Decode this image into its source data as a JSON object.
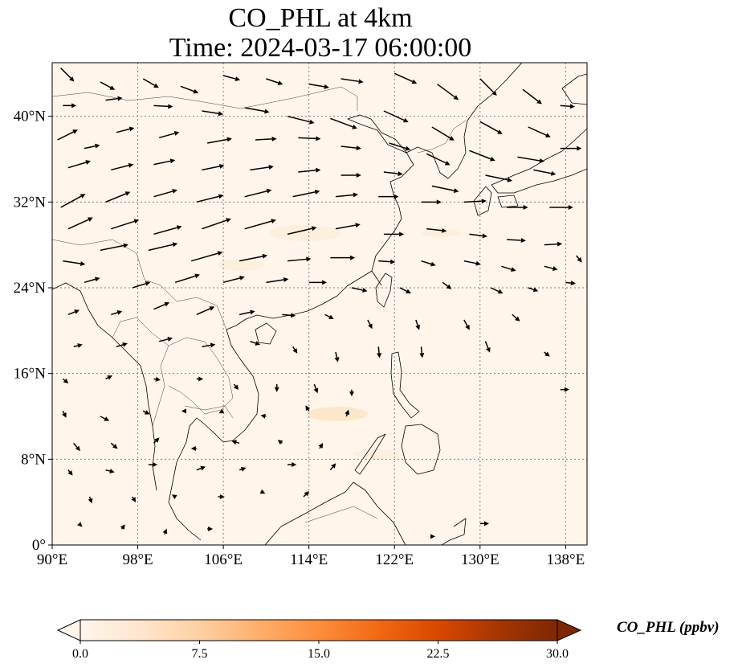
{
  "title": {
    "line1": "CO_PHL at 4km",
    "line2": "Time: 2024-03-17 06:00:00"
  },
  "map": {
    "lon_range": [
      90,
      140
    ],
    "lat_range": [
      0,
      45
    ],
    "lon_ticks": [
      {
        "value": 90,
        "label": "90°E"
      },
      {
        "value": 98,
        "label": "98°E"
      },
      {
        "value": 106,
        "label": "106°E"
      },
      {
        "value": 114,
        "label": "114°E"
      },
      {
        "value": 122,
        "label": "122°E"
      },
      {
        "value": 130,
        "label": "130°E"
      },
      {
        "value": 138,
        "label": "138°E"
      }
    ],
    "lat_ticks": [
      {
        "value": 0,
        "label": "0°"
      },
      {
        "value": 8,
        "label": "8°N"
      },
      {
        "value": 16,
        "label": "16°N"
      },
      {
        "value": 24,
        "label": "24°N"
      },
      {
        "value": 32,
        "label": "32°N"
      },
      {
        "value": 40,
        "label": "40°N"
      }
    ],
    "gridlines": true,
    "background_color": "#fff5ea",
    "coast_color": "#000000"
  },
  "colorbar": {
    "label": "CO_PHL (ppbv)",
    "min": 0,
    "max": 30,
    "ticks": [
      "0.0",
      "7.5",
      "15.0",
      "22.5",
      "30.0"
    ],
    "colors": [
      "#fff5eb",
      "#fee6ce",
      "#fdd0a2",
      "#fdae6b",
      "#fd8d3c",
      "#f16913",
      "#d94801",
      "#a63603",
      "#7f2704"
    ],
    "extend": "both"
  },
  "wind_vectors": [
    {
      "lon": 90.8,
      "lat": 44.5,
      "u": 1.2,
      "v": -1.2
    },
    {
      "lon": 94.5,
      "lat": 43.2,
      "u": 1.3,
      "v": -0.7
    },
    {
      "lon": 98.5,
      "lat": 43.5,
      "u": 1.4,
      "v": -0.8
    },
    {
      "lon": 102.0,
      "lat": 42.8,
      "u": 1.6,
      "v": -0.6
    },
    {
      "lon": 106.0,
      "lat": 43.8,
      "u": 1.5,
      "v": -0.4
    },
    {
      "lon": 110.0,
      "lat": 43.5,
      "u": 1.5,
      "v": -0.5
    },
    {
      "lon": 114.0,
      "lat": 43.0,
      "u": 1.8,
      "v": -0.3
    },
    {
      "lon": 117.0,
      "lat": 43.5,
      "u": 2.0,
      "v": -0.3
    },
    {
      "lon": 122.0,
      "lat": 44.0,
      "u": 2.0,
      "v": -0.9
    },
    {
      "lon": 126.0,
      "lat": 43.0,
      "u": 1.9,
      "v": -1.4
    },
    {
      "lon": 130.0,
      "lat": 43.5,
      "u": 1.5,
      "v": -1.5
    },
    {
      "lon": 134.0,
      "lat": 42.5,
      "u": 1.7,
      "v": -1.3
    },
    {
      "lon": 137.5,
      "lat": 41.0,
      "u": 1.3,
      "v": -0.1
    },
    {
      "lon": 91.0,
      "lat": 41.0,
      "u": 1.2,
      "v": 0.0
    },
    {
      "lon": 95.0,
      "lat": 41.5,
      "u": 1.5,
      "v": 0.2
    },
    {
      "lon": 99.5,
      "lat": 41.0,
      "u": 1.7,
      "v": -0.1
    },
    {
      "lon": 104.0,
      "lat": 40.5,
      "u": 1.9,
      "v": -0.3
    },
    {
      "lon": 108.0,
      "lat": 40.8,
      "u": 2.2,
      "v": -0.4
    },
    {
      "lon": 112.0,
      "lat": 40.0,
      "u": 2.4,
      "v": -0.6
    },
    {
      "lon": 116.0,
      "lat": 39.8,
      "u": 2.4,
      "v": -0.9
    },
    {
      "lon": 121.0,
      "lat": 40.5,
      "u": 2.2,
      "v": -1.0
    },
    {
      "lon": 125.5,
      "lat": 39.0,
      "u": 2.0,
      "v": -1.2
    },
    {
      "lon": 130.0,
      "lat": 39.5,
      "u": 2.0,
      "v": -1.1
    },
    {
      "lon": 134.5,
      "lat": 39.0,
      "u": 2.0,
      "v": -0.9
    },
    {
      "lon": 90.5,
      "lat": 37.8,
      "u": 1.8,
      "v": 0.9
    },
    {
      "lon": 93.0,
      "lat": 37.0,
      "u": 1.4,
      "v": 0.3
    },
    {
      "lon": 96.0,
      "lat": 38.5,
      "u": 1.6,
      "v": 0.4
    },
    {
      "lon": 100.0,
      "lat": 38.0,
      "u": 1.8,
      "v": 0.5
    },
    {
      "lon": 104.5,
      "lat": 37.5,
      "u": 2.2,
      "v": 0.4
    },
    {
      "lon": 109.0,
      "lat": 37.8,
      "u": 1.9,
      "v": 0.1
    },
    {
      "lon": 113.0,
      "lat": 38.0,
      "u": 2.0,
      "v": -0.1
    },
    {
      "lon": 117.0,
      "lat": 37.2,
      "u": 1.8,
      "v": -0.2
    },
    {
      "lon": 121.5,
      "lat": 37.5,
      "u": 1.9,
      "v": -0.6
    },
    {
      "lon": 125.0,
      "lat": 36.5,
      "u": 2.1,
      "v": -1.0
    },
    {
      "lon": 129.0,
      "lat": 36.8,
      "u": 2.3,
      "v": -0.9
    },
    {
      "lon": 133.5,
      "lat": 36.2,
      "u": 2.4,
      "v": -0.4
    },
    {
      "lon": 137.5,
      "lat": 37.0,
      "u": 1.9,
      "v": 0.0
    },
    {
      "lon": 91.5,
      "lat": 35.2,
      "u": 2.0,
      "v": 0.6
    },
    {
      "lon": 95.5,
      "lat": 35.0,
      "u": 2.0,
      "v": 0.5
    },
    {
      "lon": 99.5,
      "lat": 35.5,
      "u": 1.9,
      "v": 0.4
    },
    {
      "lon": 104.0,
      "lat": 35.0,
      "u": 2.0,
      "v": 0.4
    },
    {
      "lon": 108.5,
      "lat": 35.0,
      "u": 2.1,
      "v": 0.3
    },
    {
      "lon": 113.0,
      "lat": 34.8,
      "u": 2.0,
      "v": 0.2
    },
    {
      "lon": 117.0,
      "lat": 34.5,
      "u": 1.8,
      "v": 0.0
    },
    {
      "lon": 121.0,
      "lat": 34.8,
      "u": 1.7,
      "v": -0.2
    },
    {
      "lon": 125.5,
      "lat": 33.5,
      "u": 2.4,
      "v": -0.5
    },
    {
      "lon": 130.5,
      "lat": 34.5,
      "u": 2.4,
      "v": -0.5
    },
    {
      "lon": 135.0,
      "lat": 35.0,
      "u": 2.0,
      "v": -0.4
    },
    {
      "lon": 90.8,
      "lat": 31.5,
      "u": 2.2,
      "v": 1.2
    },
    {
      "lon": 95.0,
      "lat": 32.0,
      "u": 2.2,
      "v": 0.9
    },
    {
      "lon": 99.5,
      "lat": 32.5,
      "u": 2.1,
      "v": 0.6
    },
    {
      "lon": 103.5,
      "lat": 32.0,
      "u": 2.4,
      "v": 0.6
    },
    {
      "lon": 108.0,
      "lat": 32.5,
      "u": 2.4,
      "v": 0.6
    },
    {
      "lon": 112.5,
      "lat": 32.5,
      "u": 2.4,
      "v": 0.5
    },
    {
      "lon": 116.5,
      "lat": 32.5,
      "u": 2.0,
      "v": 0.2
    },
    {
      "lon": 120.5,
      "lat": 32.5,
      "u": 1.8,
      "v": 0.0
    },
    {
      "lon": 124.5,
      "lat": 32.0,
      "u": 1.8,
      "v": 0.0
    },
    {
      "lon": 128.5,
      "lat": 32.0,
      "u": 2.0,
      "v": 0.1
    },
    {
      "lon": 132.5,
      "lat": 31.5,
      "u": 1.9,
      "v": 0.0
    },
    {
      "lon": 136.5,
      "lat": 31.5,
      "u": 2.1,
      "v": 0.0
    },
    {
      "lon": 91.5,
      "lat": 29.5,
      "u": 2.2,
      "v": 1.0
    },
    {
      "lon": 95.5,
      "lat": 29.5,
      "u": 2.5,
      "v": 0.8
    },
    {
      "lon": 99.5,
      "lat": 29.0,
      "u": 2.5,
      "v": 0.7
    },
    {
      "lon": 104.0,
      "lat": 29.5,
      "u": 2.6,
      "v": 0.9
    },
    {
      "lon": 108.0,
      "lat": 29.5,
      "u": 2.8,
      "v": 0.8
    },
    {
      "lon": 112.0,
      "lat": 29.0,
      "u": 2.6,
      "v": 0.6
    },
    {
      "lon": 116.5,
      "lat": 29.5,
      "u": 2.2,
      "v": 0.4
    },
    {
      "lon": 121.0,
      "lat": 29.0,
      "u": 1.8,
      "v": 0.0
    },
    {
      "lon": 125.0,
      "lat": 29.5,
      "u": 1.8,
      "v": -0.2
    },
    {
      "lon": 129.0,
      "lat": 29.0,
      "u": 1.6,
      "v": -0.2
    },
    {
      "lon": 132.5,
      "lat": 28.5,
      "u": 1.7,
      "v": -0.1
    },
    {
      "lon": 136.0,
      "lat": 28.0,
      "u": 1.6,
      "v": 0.1
    },
    {
      "lon": 91.0,
      "lat": 26.5,
      "u": 2.0,
      "v": -0.3
    },
    {
      "lon": 94.5,
      "lat": 27.5,
      "u": 2.5,
      "v": 0.5
    },
    {
      "lon": 99.0,
      "lat": 27.5,
      "u": 2.6,
      "v": 0.6
    },
    {
      "lon": 103.0,
      "lat": 26.5,
      "u": 2.8,
      "v": 0.8
    },
    {
      "lon": 107.5,
      "lat": 26.5,
      "u": 2.5,
      "v": 0.5
    },
    {
      "lon": 112.0,
      "lat": 26.5,
      "u": 2.1,
      "v": 0.2
    },
    {
      "lon": 116.0,
      "lat": 26.8,
      "u": 2.2,
      "v": 0.0
    },
    {
      "lon": 120.5,
      "lat": 26.5,
      "u": 1.5,
      "v": -0.1
    },
    {
      "lon": 124.5,
      "lat": 26.5,
      "u": 1.3,
      "v": -0.4
    },
    {
      "lon": 128.5,
      "lat": 26.5,
      "u": 1.5,
      "v": -0.3
    },
    {
      "lon": 132.0,
      "lat": 26.0,
      "u": 1.3,
      "v": -0.4
    },
    {
      "lon": 136.0,
      "lat": 26.0,
      "u": 1.2,
      "v": -0.3
    },
    {
      "lon": 139.0,
      "lat": 27.0,
      "u": 0.5,
      "v": -0.6
    },
    {
      "lon": 93.0,
      "lat": 24.5,
      "u": 1.4,
      "v": 0.4
    },
    {
      "lon": 97.5,
      "lat": 24.0,
      "u": 1.6,
      "v": 0.5
    },
    {
      "lon": 101.5,
      "lat": 24.5,
      "u": 2.2,
      "v": 0.7
    },
    {
      "lon": 106.0,
      "lat": 24.5,
      "u": 1.9,
      "v": 0.5
    },
    {
      "lon": 110.0,
      "lat": 24.5,
      "u": 2.0,
      "v": 0.3
    },
    {
      "lon": 114.0,
      "lat": 24.5,
      "u": 1.6,
      "v": 0.0
    },
    {
      "lon": 118.0,
      "lat": 24.0,
      "u": 1.4,
      "v": -0.3
    },
    {
      "lon": 122.5,
      "lat": 24.0,
      "u": 1.0,
      "v": -0.5
    },
    {
      "lon": 126.5,
      "lat": 24.5,
      "u": 0.8,
      "v": -0.6
    },
    {
      "lon": 131.0,
      "lat": 24.0,
      "u": 1.1,
      "v": -0.5
    },
    {
      "lon": 134.5,
      "lat": 24.0,
      "u": 0.9,
      "v": -0.3
    },
    {
      "lon": 138.0,
      "lat": 24.5,
      "u": 0.9,
      "v": -0.1
    },
    {
      "lon": 91.5,
      "lat": 21.5,
      "u": 1.0,
      "v": 0.4
    },
    {
      "lon": 95.5,
      "lat": 21.5,
      "u": 1.0,
      "v": 0.3
    },
    {
      "lon": 99.5,
      "lat": 22.0,
      "u": 1.4,
      "v": 0.6
    },
    {
      "lon": 103.5,
      "lat": 21.5,
      "u": 1.6,
      "v": 0.7
    },
    {
      "lon": 107.5,
      "lat": 21.5,
      "u": 1.4,
      "v": 0.3
    },
    {
      "lon": 111.5,
      "lat": 21.5,
      "u": 1.2,
      "v": -0.1
    },
    {
      "lon": 115.5,
      "lat": 21.5,
      "u": 0.8,
      "v": -0.4
    },
    {
      "lon": 119.5,
      "lat": 21.0,
      "u": 0.4,
      "v": -0.8
    },
    {
      "lon": 124.0,
      "lat": 21.0,
      "u": 0.3,
      "v": -0.9
    },
    {
      "lon": 128.5,
      "lat": 21.0,
      "u": 0.5,
      "v": -0.9
    },
    {
      "lon": 133.0,
      "lat": 21.5,
      "u": 0.7,
      "v": -0.6
    },
    {
      "lon": 92.0,
      "lat": 18.5,
      "u": 0.8,
      "v": 0.2
    },
    {
      "lon": 96.0,
      "lat": 18.5,
      "u": 1.0,
      "v": 0.3
    },
    {
      "lon": 100.0,
      "lat": 19.0,
      "u": 1.2,
      "v": 0.3
    },
    {
      "lon": 104.0,
      "lat": 18.5,
      "u": 1.2,
      "v": 0.2
    },
    {
      "lon": 108.5,
      "lat": 19.0,
      "u": 0.9,
      "v": -0.3
    },
    {
      "lon": 112.5,
      "lat": 18.5,
      "u": 0.4,
      "v": -0.6
    },
    {
      "lon": 116.5,
      "lat": 18.0,
      "u": 0.2,
      "v": -0.9
    },
    {
      "lon": 120.5,
      "lat": 18.5,
      "u": 0.1,
      "v": -1.0
    },
    {
      "lon": 124.5,
      "lat": 18.5,
      "u": 0.1,
      "v": -1.0
    },
    {
      "lon": 130.5,
      "lat": 19.0,
      "u": 0.4,
      "v": -1.0
    },
    {
      "lon": 136.0,
      "lat": 18.0,
      "u": 0.5,
      "v": -0.4
    },
    {
      "lon": 91.0,
      "lat": 15.5,
      "u": 0.5,
      "v": -0.4
    },
    {
      "lon": 95.0,
      "lat": 15.5,
      "u": 0.6,
      "v": 0.3
    },
    {
      "lon": 99.5,
      "lat": 15.5,
      "u": 0.6,
      "v": -0.1
    },
    {
      "lon": 103.5,
      "lat": 15.5,
      "u": 0.6,
      "v": 0.0
    },
    {
      "lon": 107.0,
      "lat": 15.0,
      "u": 0.4,
      "v": -0.5
    },
    {
      "lon": 111.0,
      "lat": 15.0,
      "u": 0.0,
      "v": -0.7
    },
    {
      "lon": 114.5,
      "lat": 15.0,
      "u": 0.3,
      "v": -0.8
    },
    {
      "lon": 118.0,
      "lat": 14.5,
      "u": 0.0,
      "v": -0.6
    },
    {
      "lon": 137.5,
      "lat": 14.5,
      "u": 0.8,
      "v": 0.0
    },
    {
      "lon": 91.0,
      "lat": 12.5,
      "u": 0.3,
      "v": -0.6
    },
    {
      "lon": 94.5,
      "lat": 12.0,
      "u": 0.8,
      "v": -0.4
    },
    {
      "lon": 98.5,
      "lat": 12.5,
      "u": 0.6,
      "v": -0.3
    },
    {
      "lon": 102.5,
      "lat": 12.5,
      "u": -0.4,
      "v": 0.0
    },
    {
      "lon": 106.0,
      "lat": 12.5,
      "u": -0.4,
      "v": -0.2
    },
    {
      "lon": 110.0,
      "lat": 12.0,
      "u": -0.5,
      "v": 0.1
    },
    {
      "lon": 114.0,
      "lat": 12.5,
      "u": -0.3,
      "v": 0.5
    },
    {
      "lon": 117.5,
      "lat": 12.0,
      "u": 0.2,
      "v": 0.6
    },
    {
      "lon": 92.0,
      "lat": 9.5,
      "u": 0.6,
      "v": -0.7
    },
    {
      "lon": 95.5,
      "lat": 9.5,
      "u": 0.6,
      "v": -0.5
    },
    {
      "lon": 99.5,
      "lat": 9.5,
      "u": 0.5,
      "v": 0.5
    },
    {
      "lon": 103.5,
      "lat": 9.0,
      "u": -0.5,
      "v": 0.0
    },
    {
      "lon": 107.5,
      "lat": 9.5,
      "u": -0.7,
      "v": 0.2
    },
    {
      "lon": 111.5,
      "lat": 9.5,
      "u": -0.4,
      "v": 0.3
    },
    {
      "lon": 115.0,
      "lat": 9.0,
      "u": 0.3,
      "v": 0.5
    },
    {
      "lon": 91.5,
      "lat": 7.0,
      "u": 0.4,
      "v": -0.5
    },
    {
      "lon": 95.0,
      "lat": 7.0,
      "u": 0.8,
      "v": -0.2
    },
    {
      "lon": 99.0,
      "lat": 7.5,
      "u": 0.8,
      "v": 0.0
    },
    {
      "lon": 103.5,
      "lat": 7.0,
      "u": 0.8,
      "v": 0.3
    },
    {
      "lon": 107.5,
      "lat": 7.0,
      "u": 0.6,
      "v": 0.2
    },
    {
      "lon": 112.0,
      "lat": 7.5,
      "u": 0.8,
      "v": 0.0
    },
    {
      "lon": 116.0,
      "lat": 7.0,
      "u": 0.5,
      "v": 0.6
    },
    {
      "lon": 93.5,
      "lat": 4.5,
      "u": 0.2,
      "v": -0.6
    },
    {
      "lon": 97.5,
      "lat": 4.5,
      "u": 0.3,
      "v": -0.5
    },
    {
      "lon": 101.5,
      "lat": 4.5,
      "u": -0.3,
      "v": 0.2
    },
    {
      "lon": 105.5,
      "lat": 4.5,
      "u": 0.6,
      "v": 0.0
    },
    {
      "lon": 109.5,
      "lat": 5.0,
      "u": 0.4,
      "v": -0.2
    },
    {
      "lon": 113.5,
      "lat": 4.5,
      "u": 0.5,
      "v": 0.5
    },
    {
      "lon": 92.5,
      "lat": 2.0,
      "u": 0.3,
      "v": -0.3
    },
    {
      "lon": 96.5,
      "lat": 1.5,
      "u": 0.3,
      "v": 0.4
    },
    {
      "lon": 100.5,
      "lat": 1.0,
      "u": 0.2,
      "v": 0.5
    },
    {
      "lon": 104.5,
      "lat": 1.5,
      "u": 0.5,
      "v": 0.0
    },
    {
      "lon": 130.0,
      "lat": 2.0,
      "u": 0.8,
      "v": 0.0
    },
    {
      "lon": 125.5,
      "lat": 0.8,
      "u": 0.3,
      "v": 0.0
    }
  ]
}
